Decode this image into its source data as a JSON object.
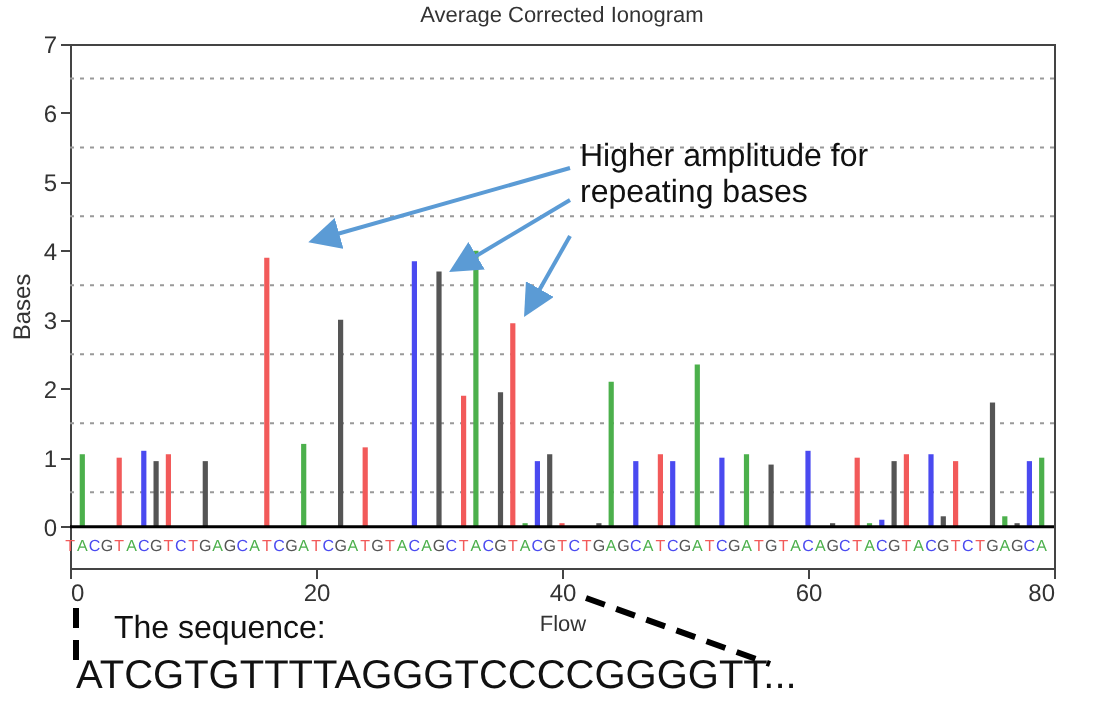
{
  "chart_data": {
    "type": "bar",
    "title": "Average Corrected Ionogram",
    "xlabel": "Flow",
    "ylabel": "Bases",
    "xlim": [
      0,
      80
    ],
    "xticks": [
      0,
      20,
      40,
      60,
      80
    ],
    "ylim": [
      -0.6,
      7
    ],
    "yticks": [
      0,
      {
        "value": 0.5,
        "label": null
      },
      1,
      {
        "value": 1.5,
        "label": null
      },
      2,
      {
        "value": 2.5,
        "label": null
      },
      3,
      {
        "value": 3.5,
        "label": null
      },
      4,
      {
        "value": 4.5,
        "label": null
      },
      5,
      {
        "value": 5.5,
        "label": null
      },
      6,
      {
        "value": 6.5,
        "label": null
      },
      7
    ],
    "grid": "y",
    "ref_lines": [
      {
        "axis": "y",
        "value": 0,
        "color": "#000000"
      }
    ],
    "series": [
      {
        "name": "T",
        "color": "#f25a5a",
        "x": [
          0,
          4,
          8,
          10,
          16,
          20,
          24,
          26,
          32,
          36,
          40,
          42,
          48,
          52,
          56,
          58,
          64,
          68,
          72,
          74
        ],
        "values": [
          0,
          1.0,
          1.05,
          0,
          3.9,
          0,
          1.15,
          0,
          1.9,
          2.95,
          0.05,
          0,
          1.05,
          0,
          0,
          0,
          1.0,
          1.05,
          0.95,
          0
        ]
      },
      {
        "name": "A",
        "color": "#4cb04c",
        "x": [
          1,
          5,
          12,
          15,
          19,
          23,
          27,
          29,
          33,
          37,
          44,
          47,
          51,
          55,
          59,
          61,
          65,
          69,
          76,
          79
        ],
        "values": [
          1.05,
          0,
          0,
          0,
          1.2,
          0,
          0,
          0,
          4.0,
          0.05,
          2.1,
          0,
          2.35,
          1.05,
          0,
          0,
          0.05,
          0,
          0.15,
          1.0
        ]
      },
      {
        "name": "C",
        "color": "#4a4af0",
        "x": [
          2,
          6,
          9,
          14,
          17,
          21,
          28,
          31,
          34,
          38,
          41,
          46,
          49,
          53,
          60,
          63,
          66,
          70,
          73,
          78
        ],
        "values": [
          0,
          1.1,
          0,
          0,
          0,
          0,
          3.85,
          0,
          0,
          0.95,
          0,
          0.95,
          0.95,
          1.0,
          1.1,
          0,
          0.1,
          1.05,
          0,
          0.95
        ]
      },
      {
        "name": "G",
        "color": "#555555",
        "x": [
          3,
          7,
          11,
          13,
          18,
          22,
          25,
          30,
          35,
          39,
          43,
          45,
          50,
          54,
          57,
          62,
          67,
          71,
          75,
          77
        ],
        "values": [
          0,
          0.95,
          0.95,
          0,
          0,
          3.0,
          0,
          3.7,
          1.95,
          1.05,
          0.05,
          0,
          0,
          0,
          0.9,
          0.05,
          0.95,
          0.15,
          1.8,
          0.05
        ]
      }
    ],
    "annotations": [
      "Higher amplitude for repeating bases",
      "The sequence:",
      "ATCGTGTTTTAGGGTCCCCGGGGTT..."
    ]
  }
}
